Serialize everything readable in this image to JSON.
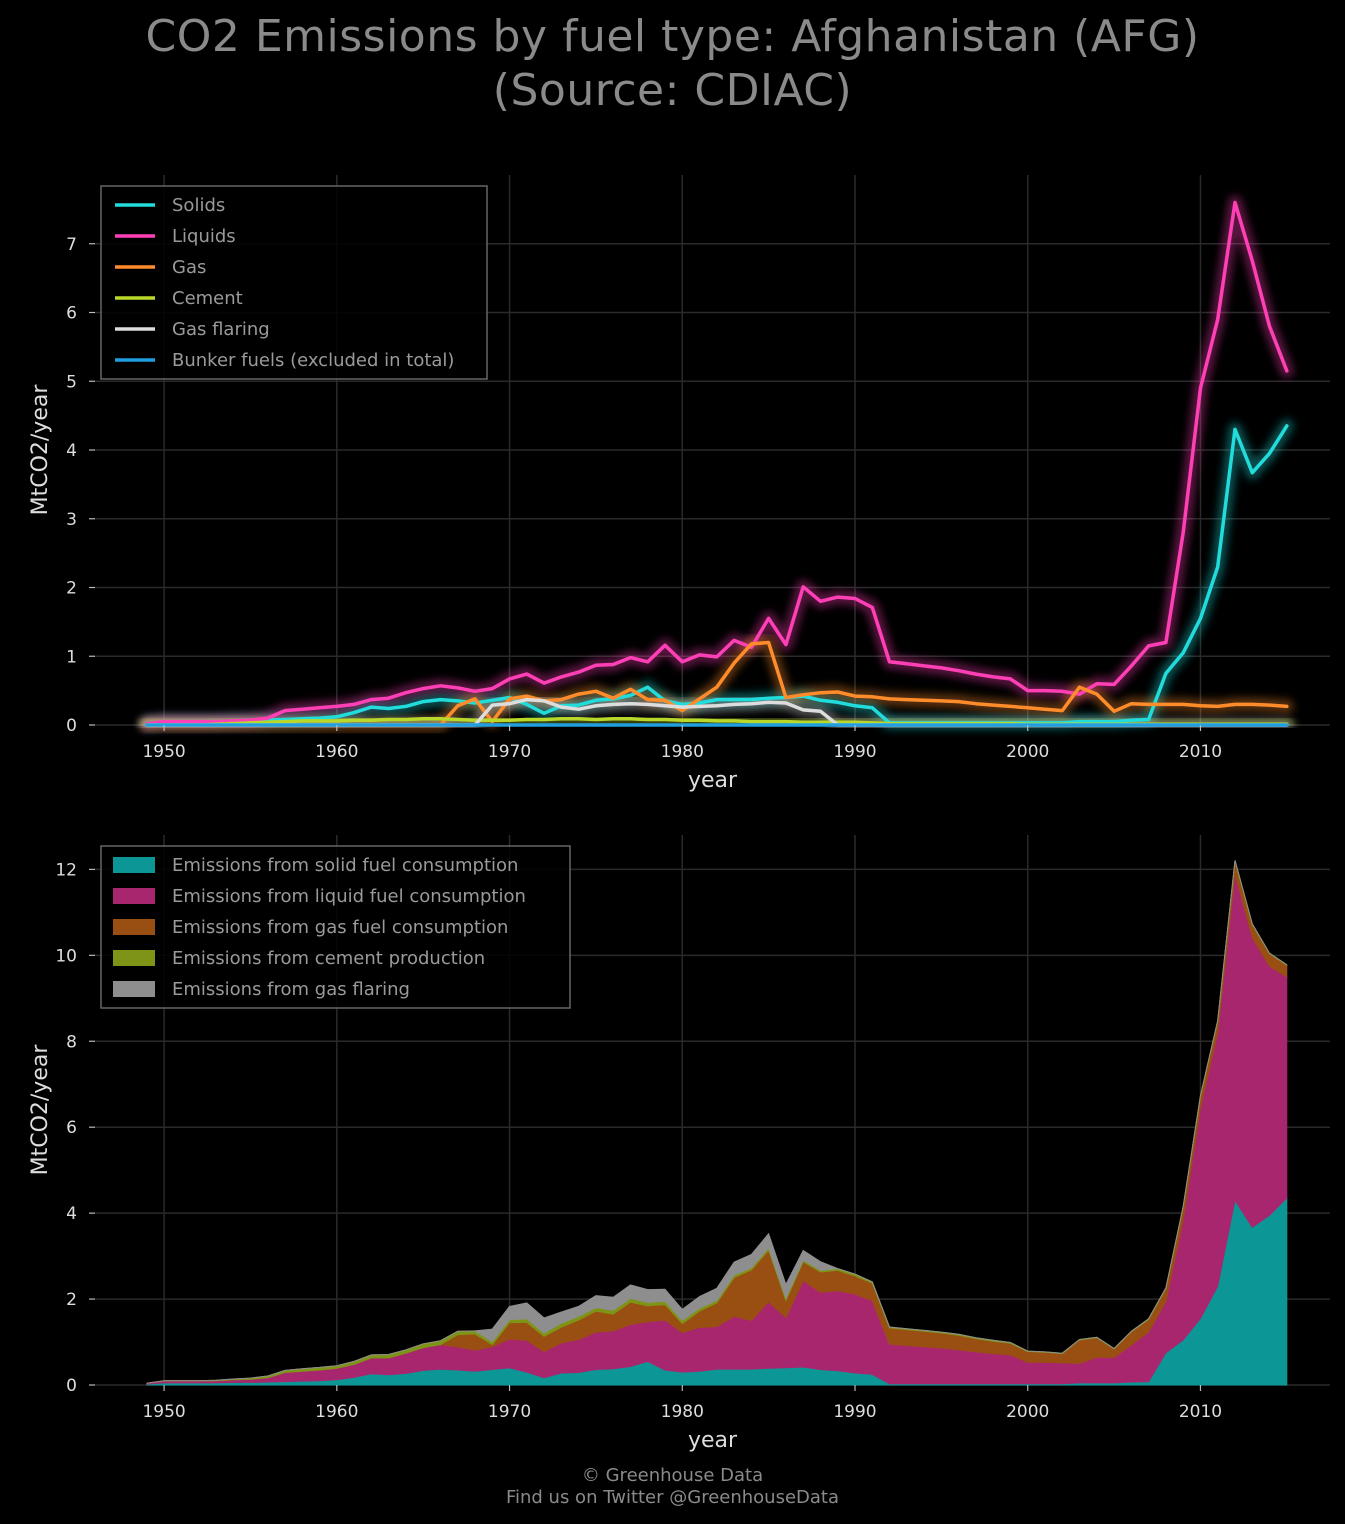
{
  "title": {
    "line1": "CO2 Emissions by fuel type: Afghanistan (AFG)",
    "line2": "(Source: CDIAC)"
  },
  "footer": {
    "line1": "© Greenhouse Data",
    "line2": "Find us on Twitter @GreenhouseData"
  },
  "chart_data": [
    {
      "type": "line",
      "xlabel": "year",
      "ylabel": "MtCO2/year",
      "xlim": [
        1946,
        2017.5
      ],
      "ylim": [
        0,
        8
      ],
      "xticks": [
        1950,
        1960,
        1970,
        1980,
        1990,
        2000,
        2010
      ],
      "yticks": [
        0,
        1,
        2,
        3,
        4,
        5,
        6,
        7
      ],
      "grid": true,
      "legend_position": "top-left",
      "x_start": 1949,
      "series": [
        {
          "name": "Solids",
          "color": "#22dcdc",
          "values": [
            0.02,
            0.05,
            0.05,
            0.05,
            0.05,
            0.06,
            0.06,
            0.07,
            0.08,
            0.09,
            0.1,
            0.12,
            0.18,
            0.26,
            0.24,
            0.27,
            0.34,
            0.37,
            0.35,
            0.32,
            0.36,
            0.4,
            0.3,
            0.17,
            0.28,
            0.29,
            0.36,
            0.38,
            0.43,
            0.55,
            0.35,
            0.3,
            0.32,
            0.37,
            0.37,
            0.37,
            0.39,
            0.4,
            0.42,
            0.36,
            0.33,
            0.28,
            0.25,
            0.03,
            0.03,
            0.03,
            0.03,
            0.03,
            0.03,
            0.03,
            0.03,
            0.03,
            0.03,
            0.03,
            0.05,
            0.05,
            0.05,
            0.07,
            0.08,
            0.75,
            1.05,
            1.55,
            2.3,
            4.3,
            3.67,
            3.95,
            4.35
          ]
        },
        {
          "name": "Liquids",
          "color": "#ff3fb5",
          "values": [
            0.02,
            0.05,
            0.05,
            0.05,
            0.05,
            0.06,
            0.07,
            0.1,
            0.21,
            0.23,
            0.25,
            0.27,
            0.3,
            0.37,
            0.39,
            0.47,
            0.53,
            0.57,
            0.54,
            0.49,
            0.53,
            0.67,
            0.74,
            0.61,
            0.7,
            0.77,
            0.87,
            0.88,
            0.98,
            0.92,
            1.16,
            0.92,
            1.02,
            0.99,
            1.23,
            1.13,
            1.55,
            1.17,
            2.01,
            1.8,
            1.86,
            1.84,
            1.71,
            0.92,
            0.89,
            0.86,
            0.83,
            0.79,
            0.74,
            0.7,
            0.67,
            0.5,
            0.5,
            0.49,
            0.45,
            0.6,
            0.59,
            0.86,
            1.15,
            1.2,
            2.8,
            4.9,
            5.9,
            7.6,
            6.75,
            5.8,
            5.15
          ]
        },
        {
          "name": "Gas",
          "color": "#ff8c2a",
          "values": [
            0,
            0,
            0,
            0,
            0,
            0,
            0,
            0,
            0,
            0,
            0,
            0,
            0,
            0,
            0,
            0,
            0,
            0,
            0.28,
            0.38,
            0.05,
            0.38,
            0.42,
            0.35,
            0.37,
            0.45,
            0.49,
            0.39,
            0.52,
            0.37,
            0.36,
            0.21,
            0.38,
            0.55,
            0.9,
            1.18,
            1.2,
            0.4,
            0.44,
            0.47,
            0.48,
            0.42,
            0.41,
            0.38,
            0.37,
            0.36,
            0.35,
            0.34,
            0.31,
            0.29,
            0.27,
            0.25,
            0.23,
            0.21,
            0.55,
            0.45,
            0.2,
            0.31,
            0.3,
            0.3,
            0.3,
            0.28,
            0.27,
            0.3,
            0.3,
            0.29,
            0.27
          ]
        },
        {
          "name": "Cement",
          "color": "#b8d82a",
          "values": [
            0,
            0,
            0,
            0,
            0.01,
            0.02,
            0.03,
            0.04,
            0.05,
            0.06,
            0.06,
            0.06,
            0.07,
            0.07,
            0.08,
            0.08,
            0.09,
            0.09,
            0.08,
            0.07,
            0.07,
            0.07,
            0.08,
            0.08,
            0.09,
            0.09,
            0.08,
            0.09,
            0.09,
            0.08,
            0.08,
            0.07,
            0.07,
            0.06,
            0.06,
            0.05,
            0.05,
            0.05,
            0.04,
            0.04,
            0.04,
            0.04,
            0.03,
            0.02,
            0.02,
            0.02,
            0.02,
            0.02,
            0.02,
            0.02,
            0.02,
            0.01,
            0.01,
            0.01,
            0.01,
            0.01,
            0.01,
            0.01,
            0.01,
            0.01,
            0.01,
            0.01,
            0.01,
            0.01,
            0.01,
            0.01,
            0.01
          ]
        },
        {
          "name": "Gas flaring",
          "color": "#dddddd",
          "values": [
            0,
            0,
            0,
            0,
            0,
            0,
            0,
            0,
            0,
            0,
            0,
            0,
            0,
            0,
            0,
            0,
            0,
            0,
            0,
            0,
            0.29,
            0.31,
            0.37,
            0.35,
            0.26,
            0.23,
            0.28,
            0.3,
            0.31,
            0.3,
            0.28,
            0.26,
            0.27,
            0.28,
            0.3,
            0.31,
            0.33,
            0.32,
            0.22,
            0.2,
            0,
            0,
            0,
            0,
            0,
            0,
            0,
            0,
            0,
            0,
            0,
            0,
            0,
            0,
            0,
            0,
            0,
            0,
            0,
            0,
            0,
            0,
            0,
            0,
            0,
            0,
            0
          ]
        },
        {
          "name": "Bunker fuels (excluded in total)",
          "color": "#1f9fe0",
          "values": [
            0,
            0,
            0,
            0,
            0,
            0,
            0,
            0,
            0,
            0,
            0,
            0,
            0,
            0,
            0,
            0,
            0,
            0,
            0,
            0,
            0,
            0,
            0,
            0,
            0,
            0,
            0,
            0,
            0,
            0,
            0,
            0,
            0,
            0,
            0,
            0,
            0,
            0,
            0,
            0,
            0,
            0,
            0,
            0,
            0,
            0,
            0,
            0,
            0,
            0,
            0,
            0,
            0,
            0,
            0,
            0,
            0,
            0,
            0,
            0,
            0,
            0,
            0,
            0,
            0,
            0,
            0
          ]
        }
      ]
    },
    {
      "type": "area",
      "stacked": true,
      "xlabel": "year",
      "ylabel": "MtCO2/year",
      "xlim": [
        1946,
        2017.5
      ],
      "ylim": [
        0,
        12.8
      ],
      "xticks": [
        1950,
        1960,
        1970,
        1980,
        1990,
        2000,
        2010
      ],
      "yticks": [
        0,
        2,
        4,
        6,
        8,
        10,
        12
      ],
      "grid": true,
      "legend_position": "top-left",
      "x_start": 1949,
      "series": [
        {
          "name": "Emissions from solid fuel consumption",
          "color": "#0d9696",
          "source": "Solids"
        },
        {
          "name": "Emissions from liquid fuel consumption",
          "color": "#a8266e",
          "source": "Liquids"
        },
        {
          "name": "Emissions from gas fuel consumption",
          "color": "#9a4f12",
          "source": "Gas"
        },
        {
          "name": "Emissions from cement production",
          "color": "#7e9416",
          "source": "Cement"
        },
        {
          "name": "Emissions from gas flaring",
          "color": "#8e8e8e",
          "source": "Gas flaring"
        }
      ]
    }
  ]
}
